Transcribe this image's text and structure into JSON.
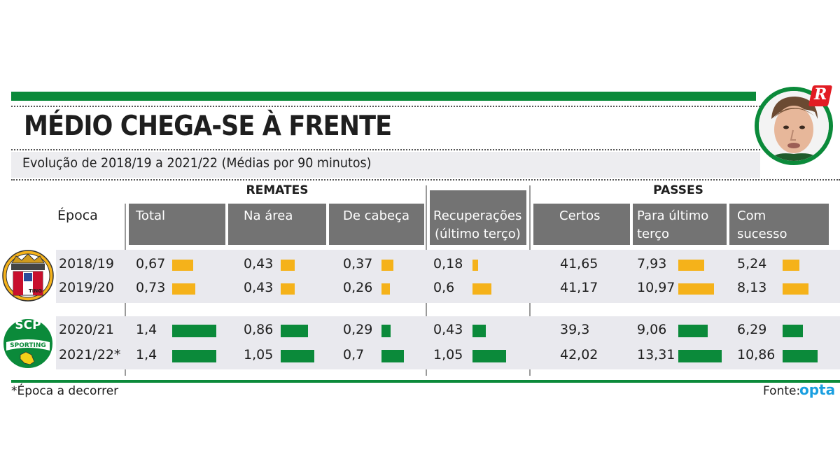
{
  "header": {
    "title": "MÉDIO CHEGA-SE À FRENTE",
    "subtitle": "Evolução de 2018/19 a 2021/22 (Médias por 90 minutos)"
  },
  "badge_letter": "R",
  "groups": {
    "remates": "REMATES",
    "passes": "PASSES"
  },
  "columns": {
    "epoca": "Época",
    "total": "Total",
    "na_area": "Na área",
    "de_cabeca": "De cabeça",
    "recuperacoes_1": "Recuperações",
    "recuperacoes_2": "(último terço)",
    "certos": "Certos",
    "para_ultimo_1": "Para último",
    "para_ultimo_2": "terço",
    "com_sucesso_1": "Com",
    "com_sucesso_2": "sucesso"
  },
  "club_badges": {
    "braga_text": "TING",
    "sporting_top": "SCP",
    "sporting_band": "SPORTING"
  },
  "footer": {
    "footnote": "*Época a decorrer",
    "source_label": "Fonte:",
    "source_brand": "opta"
  },
  "colors": {
    "braga": "#f5b21a",
    "sporting": "#0b8a3a",
    "header_gray": "#737373"
  },
  "chart_data": {
    "type": "table",
    "title": "MÉDIO CHEGA-SE À FRENTE",
    "subtitle": "Evolução de 2018/19 a 2021/22 (Médias por 90 minutos)",
    "seasons": [
      "2018/19",
      "2019/20",
      "2020/21",
      "2021/22*"
    ],
    "series": [
      {
        "name": "Total",
        "values": [
          "0,67",
          "0,73",
          "1,4",
          "1,4"
        ]
      },
      {
        "name": "Na área",
        "values": [
          "0,43",
          "0,43",
          "0,86",
          "1,05"
        ]
      },
      {
        "name": "De cabeça",
        "values": [
          "0,37",
          "0,26",
          "0,29",
          "0,7"
        ]
      },
      {
        "name": "Recuperações (último terço)",
        "values": [
          "0,18",
          "0,6",
          "0,43",
          "1,05"
        ]
      },
      {
        "name": "Certos",
        "values": [
          "41,65",
          "41,17",
          "39,3",
          "42,02"
        ]
      },
      {
        "name": "Para último terço",
        "values": [
          "7,93",
          "10,97",
          "9,06",
          "13,31"
        ]
      },
      {
        "name": "Com sucesso",
        "values": [
          "5,24",
          "8,13",
          "6,29",
          "10,86"
        ]
      }
    ],
    "bar_lengths": {
      "Total": [
        30,
        33,
        63,
        63
      ],
      "Na área": [
        20,
        20,
        39,
        48
      ],
      "De cabeça": [
        17,
        12,
        13,
        32
      ],
      "Recuperações (último terço)": [
        8,
        27,
        19,
        48
      ],
      "Certos": [
        0,
        0,
        0,
        0
      ],
      "Para último terço": [
        37,
        51,
        42,
        62
      ],
      "Com sucesso": [
        24,
        37,
        29,
        50
      ]
    },
    "row_clubs": [
      "braga",
      "braga",
      "sporting",
      "sporting"
    ]
  }
}
